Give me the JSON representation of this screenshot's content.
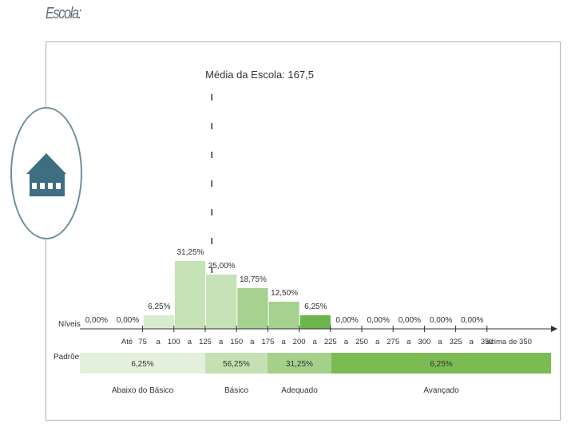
{
  "heading": "Escola:",
  "icon": "school-building-icon",
  "chart_data": {
    "type": "bar",
    "title": "Média da Escola: 167,5",
    "mean": 167.5,
    "xlabel": "Níveis",
    "row_label_patterns": "Padrões",
    "categories": [
      "Até 75",
      "75 a 100",
      "100 a 125",
      "125 a 150",
      "150 a 175",
      "175 a 200",
      "200 a 225",
      "225 a 250",
      "250 a 275",
      "275 a 300",
      "300 a 325",
      "325 a 350",
      "acima de 350"
    ],
    "values": [
      0,
      0,
      6.25,
      31.25,
      25.0,
      18.75,
      12.5,
      6.25,
      0,
      0,
      0,
      0,
      0
    ],
    "value_labels": [
      "0,00%",
      "0,00%",
      "6,25%",
      "31,25%",
      "25,00%",
      "18,75%",
      "12,50%",
      "6,25%",
      "0,00%",
      "0,00%",
      "0,00%",
      "0,00%",
      "0,00%"
    ],
    "tick_labels": [
      "Até",
      "75",
      "a",
      "100",
      "a",
      "125",
      "a",
      "150",
      "a",
      "175",
      "a",
      "200",
      "a",
      "225",
      "a",
      "250",
      "a",
      "275",
      "a",
      "300",
      "a",
      "325",
      "a",
      "350",
      "acima de 350"
    ],
    "bar_colors": [
      "#d9ecd0",
      "#d9ecd0",
      "#d9ecd0",
      "#c6e2b7",
      "#c6e2b7",
      "#a6d18f",
      "#a6d18f",
      "#6cb54c",
      "#6cb54c",
      "#6cb54c",
      "#6cb54c",
      "#6cb54c",
      "#6cb54c"
    ],
    "patterns": [
      {
        "label": "Abaixo do Básico",
        "value": "6,25%",
        "color": "#e3f0dc"
      },
      {
        "label": "Básico",
        "value": "56,25%",
        "color": "#c5e1b4"
      },
      {
        "label": "Adequado",
        "value": "31,25%",
        "color": "#a4d08a"
      },
      {
        "label": "Avançado",
        "value": "6,25%",
        "color": "#7bbb52"
      }
    ],
    "ylim": [
      0,
      35
    ]
  }
}
